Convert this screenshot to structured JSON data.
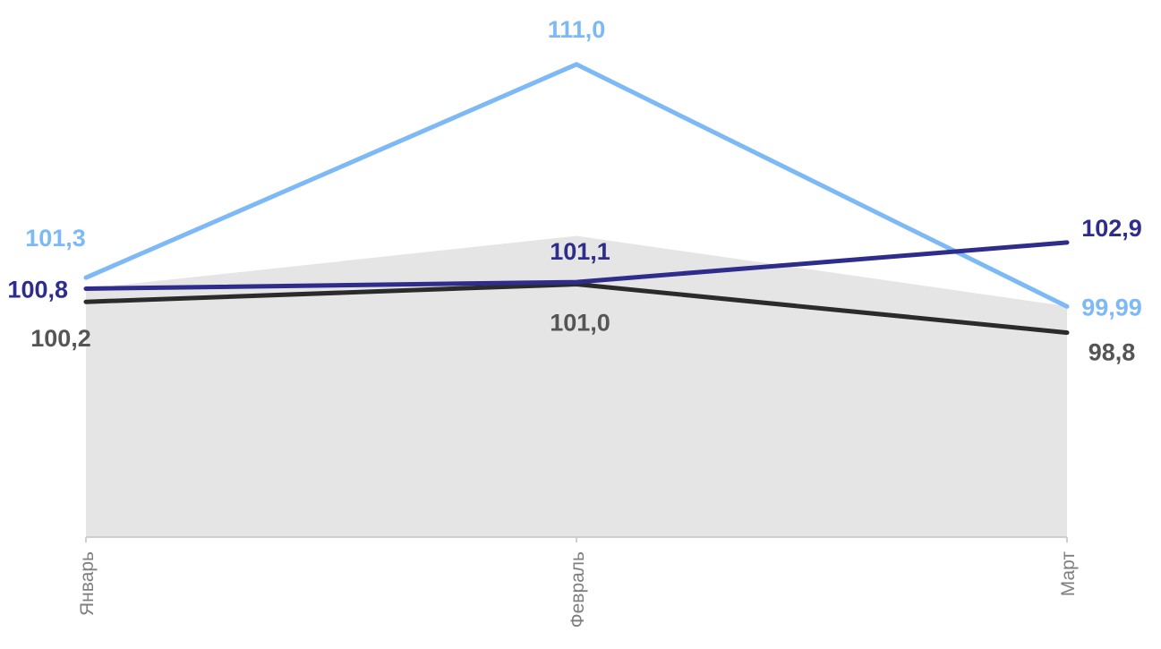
{
  "chart_data": {
    "type": "line",
    "title": "",
    "xlabel": "",
    "ylabel": "",
    "categories": [
      "Январь",
      "Февраль",
      "Март"
    ],
    "ylim": [
      89.5,
      112.3
    ],
    "grid": false,
    "legend": "none",
    "area": {
      "values": [
        100.8,
        103.2,
        100.0
      ],
      "color": "#e5e5e5"
    },
    "series": [
      {
        "values": [
          101.3,
          111.0,
          99.99
        ],
        "labels": [
          "101,3",
          "111,0",
          "99,99"
        ],
        "color": "#7db9f5"
      },
      {
        "values": [
          100.8,
          101.1,
          102.9
        ],
        "labels": [
          "100,8",
          "101,1",
          "102,9"
        ],
        "color": "#2f2d8c"
      },
      {
        "values": [
          100.2,
          101.0,
          98.8
        ],
        "labels": [
          "100,2",
          "101,0",
          "98,8"
        ],
        "color": "#2b2b2b",
        "label_color": "#555555"
      }
    ]
  }
}
